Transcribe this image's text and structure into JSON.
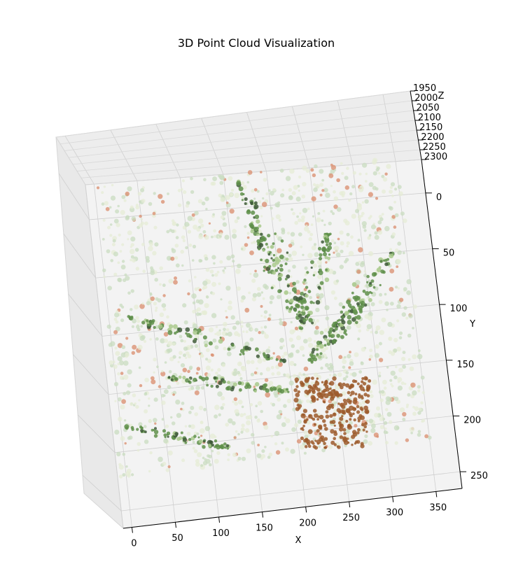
{
  "chart_data": {
    "type": "scatter",
    "projection": "3d",
    "title": "3D Point Cloud Visualization",
    "xlabel": "X",
    "ylabel": "Y",
    "zlabel": "Z",
    "x_ticks": [
      "0",
      "50",
      "100",
      "150",
      "200",
      "250",
      "300",
      "350"
    ],
    "y_ticks": [
      "0",
      "50",
      "100",
      "150",
      "200",
      "250"
    ],
    "z_ticks": [
      "1950",
      "2000",
      "2050",
      "2100",
      "2150",
      "2200",
      "2250",
      "2300"
    ],
    "xlim": [
      -10,
      380
    ],
    "ylim": [
      -30,
      265
    ],
    "zlim": [
      1950,
      2300
    ],
    "grid": true,
    "point_colors": {
      "background_green": "#c9dcc0",
      "background_pale": "#e6ecd6",
      "leaf_green": "#5f8f4a",
      "leaf_light": "#a9c98c",
      "dark_shadow": "#3f5a3a",
      "pot_brown": "#9c5a2c",
      "pink_dot": "#d98c6c"
    }
  }
}
